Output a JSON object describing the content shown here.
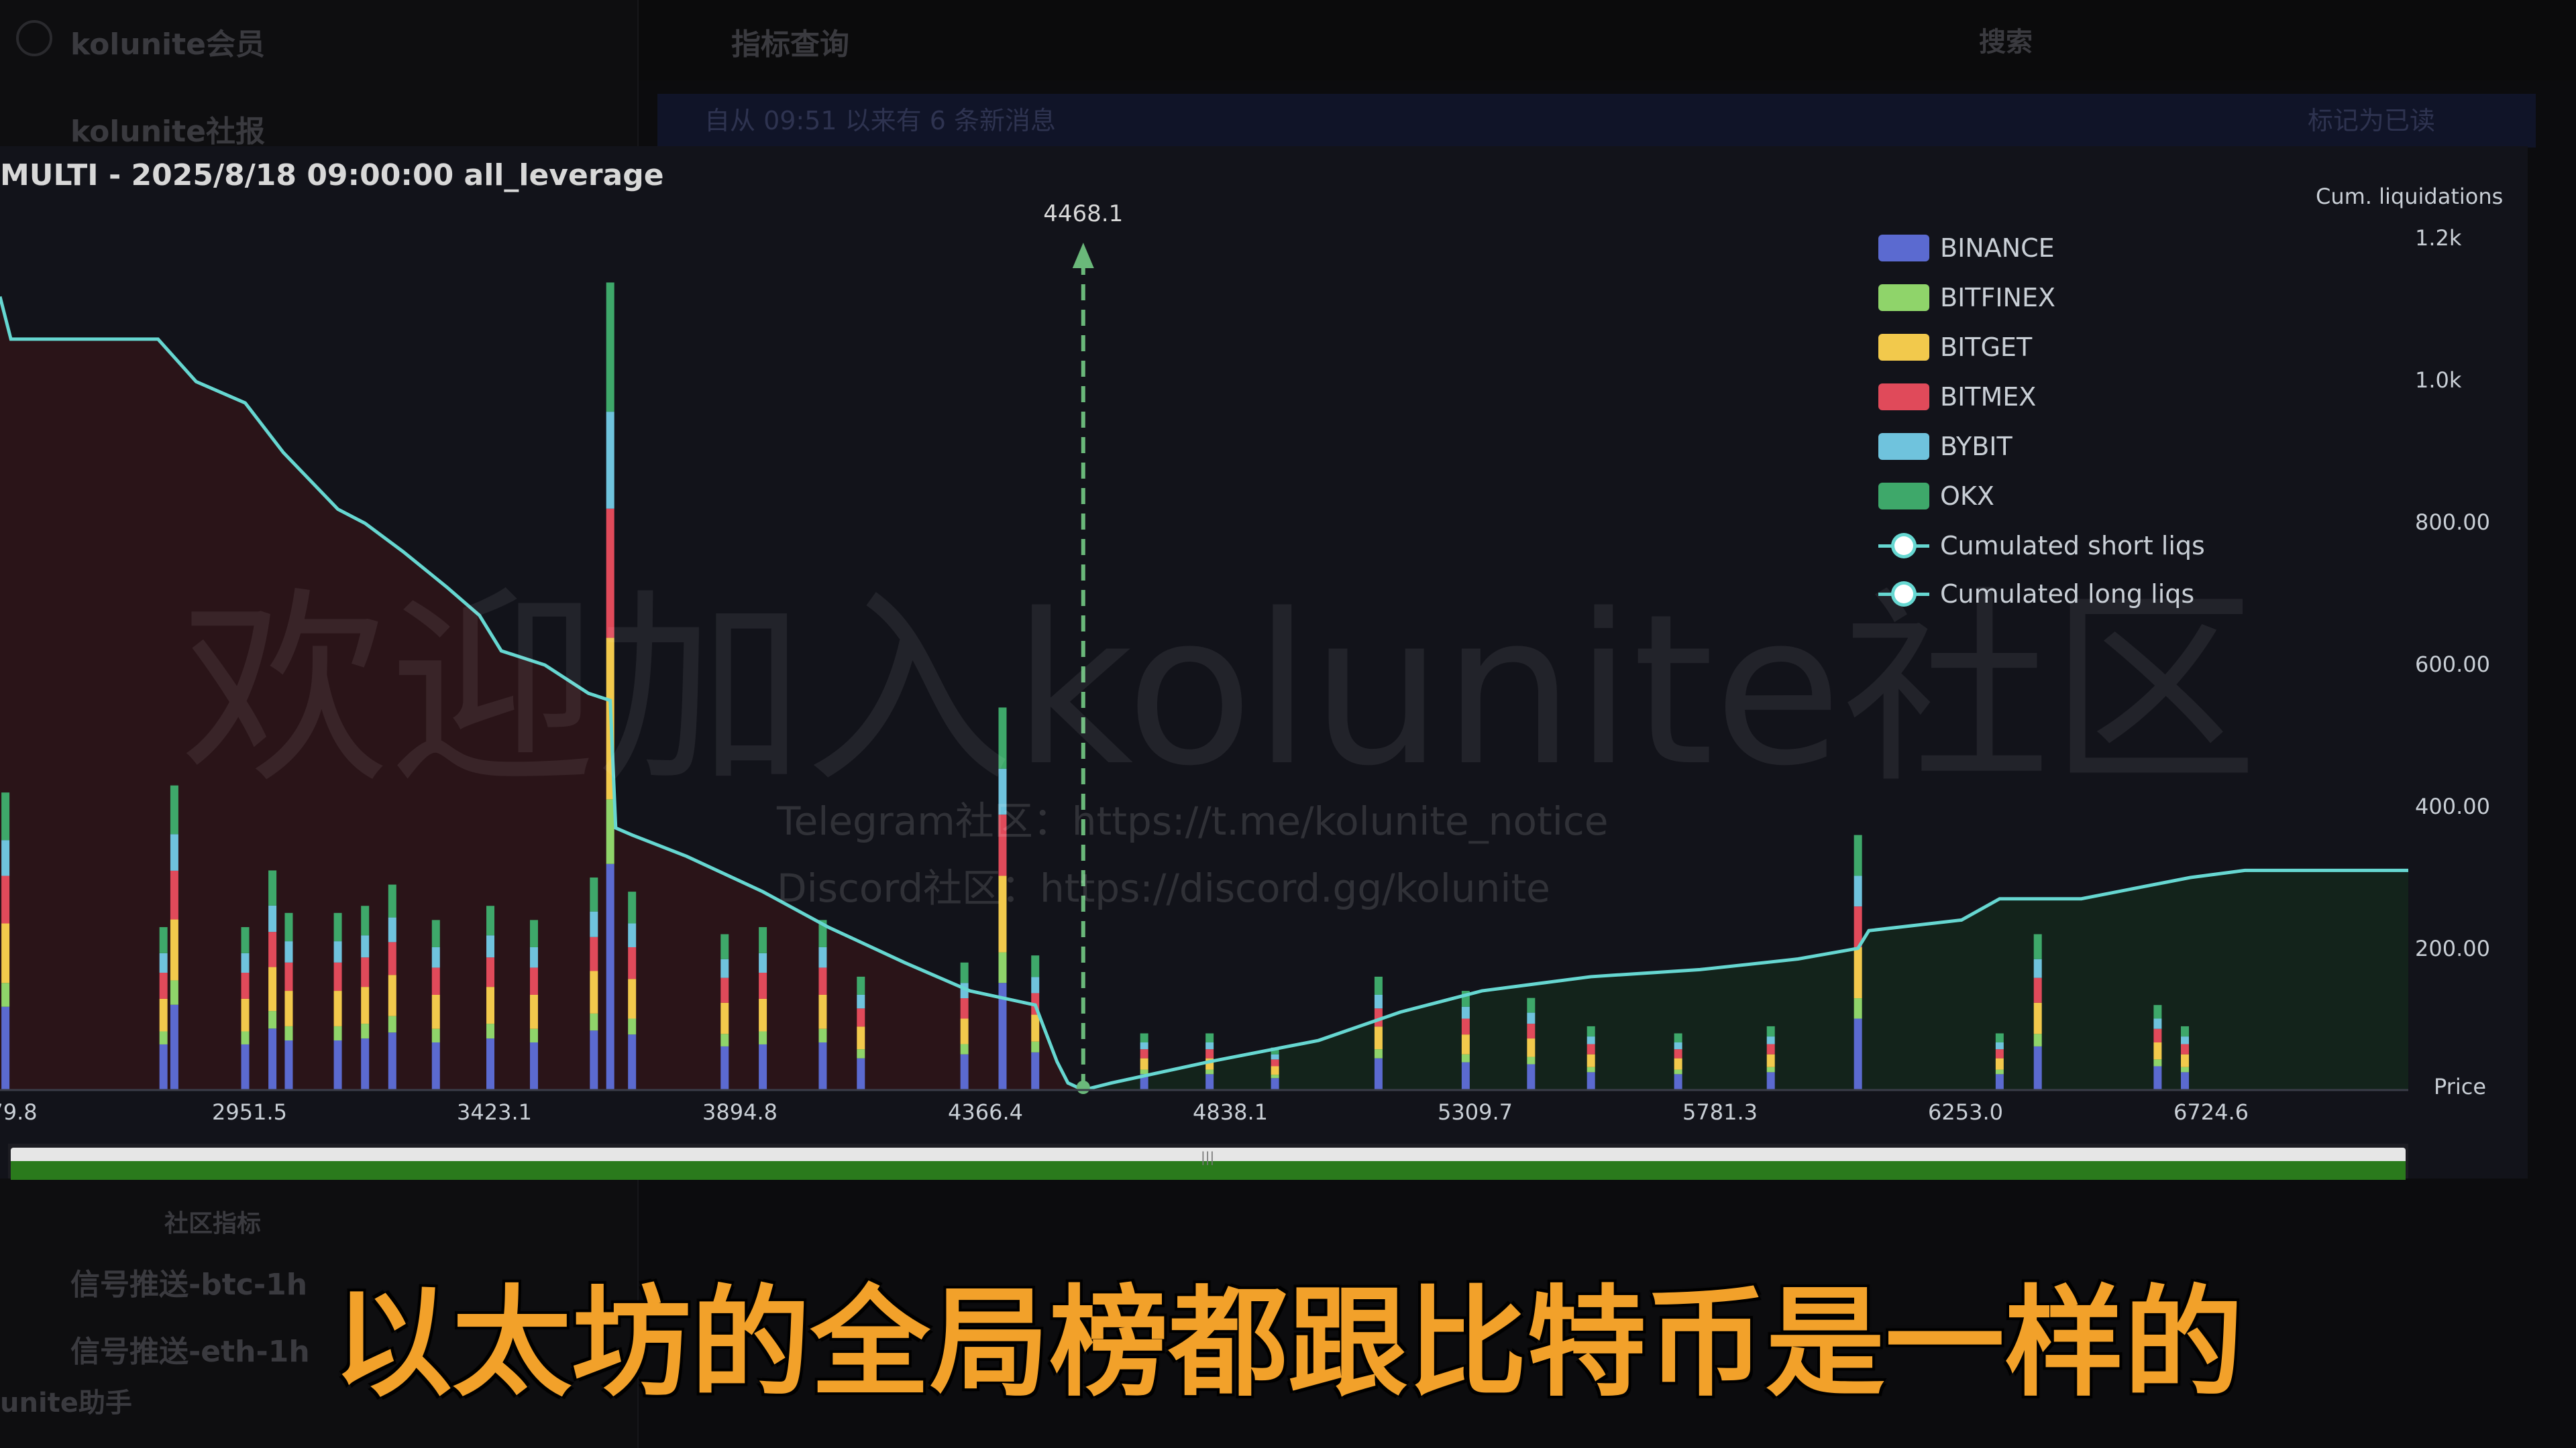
{
  "background": {
    "server_name": "kolunite会员",
    "channel_top": "kolunite社报",
    "header_title": "指标查询",
    "search_placeholder": "搜索",
    "banner_text": "自从 09:51 以来有 6 条新消息",
    "banner_action": "标记为已读",
    "sidebar_section": "社区指标",
    "channel_1": "信号推送-btc-1h",
    "channel_2": "信号推送-eth-1h",
    "user_name": "unite助手"
  },
  "chart": {
    "panel_title": "MULTI - 2025/8/18 09:00:00 all_leverage",
    "watermark": "欢迎加入kolunite社区",
    "watermark_telegram": "Telegram社区：https://t.me/kolunite_notice",
    "watermark_discord": "Discord社区：https://discord.gg/kolunite",
    "y_axis_title": "Cum. liquidations",
    "x_axis_title": "Price",
    "marker_label": "4468.1",
    "colors": {
      "BINANCE": "#5b6ad0",
      "BITFINEX": "#8fd46a",
      "BITGET": "#f2c94c",
      "BITMEX": "#e04a5a",
      "BYBIT": "#6fc3dd",
      "OKX": "#3ea86a",
      "line": "#66d7d1",
      "short_fill": "#2a1418",
      "long_fill": "#13231b",
      "marker": "#6ab87a"
    },
    "legend": [
      "BINANCE",
      "BITFINEX",
      "BITGET",
      "BITMEX",
      "BYBIT",
      "OKX",
      "Cumulated short liqs",
      "Cumulated long liqs"
    ]
  },
  "chart_data": {
    "type": "bar",
    "title": "MULTI - 2025/8/18 09:00:00 all_leverage",
    "xlabel": "Price",
    "ylabel": "Cum. liquidations",
    "x_tick_labels": [
      "79.8",
      "2951.5",
      "3423.1",
      "3894.8",
      "4366.4",
      "4838.1",
      "5309.7",
      "5781.3",
      "6253.0",
      "6724.6"
    ],
    "y_tick_labels": [
      "200.00",
      "400.00",
      "600.00",
      "800.00",
      "1.0k",
      "1.2k"
    ],
    "xlim": [
      2480,
      6900
    ],
    "ylim": [
      0,
      1200
    ],
    "current_price": 4468.1,
    "bar_series": [
      "BINANCE",
      "BITFINEX",
      "BITGET",
      "BITMEX",
      "BYBIT",
      "OKX"
    ],
    "liquidation_bars": [
      {
        "price": 2490,
        "total": 420
      },
      {
        "price": 2780,
        "total": 230
      },
      {
        "price": 2800,
        "total": 430
      },
      {
        "price": 2930,
        "total": 230
      },
      {
        "price": 2980,
        "total": 310
      },
      {
        "price": 3010,
        "total": 250
      },
      {
        "price": 3100,
        "total": 250
      },
      {
        "price": 3150,
        "total": 260
      },
      {
        "price": 3200,
        "total": 290
      },
      {
        "price": 3280,
        "total": 240
      },
      {
        "price": 3380,
        "total": 260
      },
      {
        "price": 3460,
        "total": 240
      },
      {
        "price": 3570,
        "total": 300
      },
      {
        "price": 3600,
        "total": 1140
      },
      {
        "price": 3640,
        "total": 280
      },
      {
        "price": 3810,
        "total": 220
      },
      {
        "price": 3880,
        "total": 230
      },
      {
        "price": 3990,
        "total": 240
      },
      {
        "price": 4060,
        "total": 160
      },
      {
        "price": 4250,
        "total": 180
      },
      {
        "price": 4320,
        "total": 540
      },
      {
        "price": 4380,
        "total": 190
      },
      {
        "price": 4580,
        "total": 80
      },
      {
        "price": 4700,
        "total": 80
      },
      {
        "price": 4820,
        "total": 60
      },
      {
        "price": 5010,
        "total": 160
      },
      {
        "price": 5170,
        "total": 140
      },
      {
        "price": 5290,
        "total": 130
      },
      {
        "price": 5400,
        "total": 90
      },
      {
        "price": 5560,
        "total": 80
      },
      {
        "price": 5730,
        "total": 90
      },
      {
        "price": 5890,
        "total": 360
      },
      {
        "price": 6150,
        "total": 80
      },
      {
        "price": 6220,
        "total": 220
      },
      {
        "price": 6440,
        "total": 120
      },
      {
        "price": 6490,
        "total": 90
      }
    ],
    "cumulated_short_liqs": {
      "x": [
        2480,
        2500,
        2760,
        2770,
        2840,
        2930,
        3000,
        3100,
        3150,
        3220,
        3300,
        3360,
        3400,
        3480,
        3560,
        3600,
        3610,
        3640,
        3740,
        3880,
        4000,
        4140,
        4260,
        4380,
        4420,
        4440,
        4468.1
      ],
      "y": [
        1120,
        1060,
        1060,
        1060,
        1000,
        970,
        900,
        820,
        800,
        760,
        710,
        670,
        620,
        600,
        560,
        550,
        370,
        360,
        330,
        280,
        230,
        180,
        140,
        120,
        40,
        10,
        0
      ]
    },
    "cumulated_long_liqs": {
      "x": [
        4468.1,
        4520,
        4700,
        4900,
        5050,
        5200,
        5400,
        5600,
        5780,
        5890,
        5910,
        6080,
        6150,
        6300,
        6500,
        6600,
        6900
      ],
      "y": [
        0,
        10,
        40,
        70,
        110,
        140,
        160,
        170,
        185,
        200,
        225,
        240,
        270,
        270,
        300,
        310,
        310
      ]
    }
  },
  "subtitle": "以太坊的全局榜都跟比特币是一样的"
}
